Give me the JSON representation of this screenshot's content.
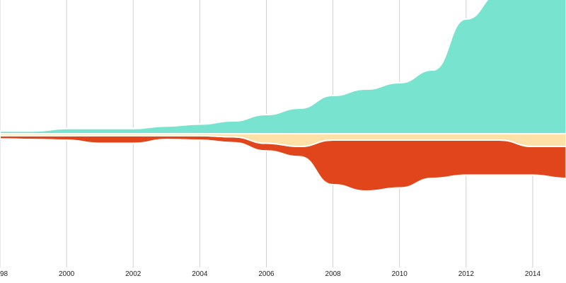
{
  "chart_data": {
    "type": "area",
    "subtype": "streamgraph",
    "title": "",
    "xlabel": "",
    "ylabel": "",
    "x": [
      1998,
      1999,
      2000,
      2001,
      2002,
      2003,
      2004,
      2005,
      2006,
      2007,
      2008,
      2009,
      2010,
      2011,
      2012,
      2013,
      2014,
      2015
    ],
    "xlim": [
      1998,
      2015
    ],
    "xticks": [
      "98",
      "2000",
      "2002",
      "2004",
      "2006",
      "2008",
      "2010",
      "2012",
      "2014"
    ],
    "grid": true,
    "legend": "none",
    "series": [
      {
        "color": "#ffe0a6",
        "values": [
          3,
          3,
          3,
          3,
          3,
          3,
          3,
          5,
          15,
          20,
          10,
          10,
          10,
          10,
          10,
          10,
          20,
          20
        ]
      },
      {
        "color": "#e0451b",
        "values": [
          5,
          6,
          7,
          12,
          12,
          6,
          7,
          9,
          12,
          16,
          70,
          80,
          75,
          60,
          55,
          55,
          45,
          50
        ]
      },
      {
        "color": "#78e4d0",
        "values": [
          4,
          4,
          8,
          8,
          8,
          12,
          15,
          20,
          30,
          40,
          60,
          70,
          80,
          100,
          180,
          220,
          350,
          400
        ]
      }
    ],
    "colors": {
      "background": "#ffffff",
      "grid": "#cfcfcf",
      "separator": "#ffffff"
    }
  }
}
